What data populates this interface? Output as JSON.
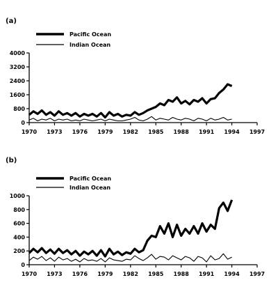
{
  "chart_data": [
    {
      "panel_label": "(a)",
      "type": "line",
      "ylim": [
        0,
        4000
      ],
      "y_ticks": [
        "4000",
        "3200",
        "2400",
        "1600",
        "800",
        "0"
      ],
      "y_tick_values": [
        4000,
        3200,
        2400,
        1600,
        800,
        0
      ],
      "xlim": [
        1970,
        1997
      ],
      "x_ticks": [
        "1970",
        "1973",
        "1976",
        "1979",
        "1982",
        "1985",
        "1988",
        "1991",
        "1994",
        "1997"
      ],
      "x_tick_values": [
        1970,
        1973,
        1976,
        1979,
        1982,
        1985,
        1988,
        1991,
        1994,
        1997
      ],
      "legend_placement": "top-left",
      "series": [
        {
          "name": "Pacific Ocean",
          "line_weight": "thick",
          "x": [
            1970,
            1970.5,
            1971,
            1971.5,
            1972,
            1972.5,
            1973,
            1973.5,
            1974,
            1974.5,
            1975,
            1975.5,
            1976,
            1976.5,
            1977,
            1977.5,
            1978,
            1978.5,
            1979,
            1979.5,
            1980,
            1980.5,
            1981,
            1981.5,
            1982,
            1982.5,
            1983,
            1983.5,
            1984,
            1984.5,
            1985,
            1985.5,
            1986,
            1986.5,
            1987,
            1987.5,
            1988,
            1988.5,
            1989,
            1989.5,
            1990,
            1990.5,
            1991,
            1991.5,
            1992,
            1992.5,
            1993,
            1993.5,
            1994
          ],
          "values": [
            450,
            650,
            500,
            700,
            450,
            600,
            400,
            650,
            450,
            550,
            400,
            550,
            350,
            500,
            400,
            500,
            350,
            550,
            300,
            600,
            400,
            500,
            350,
            450,
            400,
            600,
            450,
            550,
            700,
            800,
            900,
            1100,
            1000,
            1300,
            1200,
            1450,
            1100,
            1250,
            1050,
            1300,
            1200,
            1400,
            1100,
            1350,
            1400,
            1700,
            1900,
            2200,
            2100
          ]
        },
        {
          "name": "Indian Ocean",
          "line_weight": "thin",
          "x": [
            1970,
            1970.5,
            1971,
            1971.5,
            1972,
            1972.5,
            1973,
            1973.5,
            1974,
            1974.5,
            1975,
            1975.5,
            1976,
            1976.5,
            1977,
            1977.5,
            1978,
            1978.5,
            1979,
            1979.5,
            1980,
            1980.5,
            1981,
            1981.5,
            1982,
            1982.5,
            1983,
            1983.5,
            1984,
            1984.5,
            1985,
            1985.5,
            1986,
            1986.5,
            1987,
            1987.5,
            1988,
            1988.5,
            1989,
            1989.5,
            1990,
            1990.5,
            1991,
            1991.5,
            1992,
            1992.5,
            1993,
            1993.5,
            1994
          ],
          "values": [
            150,
            250,
            100,
            200,
            150,
            250,
            100,
            200,
            150,
            200,
            100,
            150,
            100,
            200,
            150,
            100,
            150,
            200,
            100,
            200,
            150,
            100,
            100,
            150,
            200,
            300,
            150,
            100,
            200,
            350,
            150,
            250,
            200,
            150,
            300,
            200,
            150,
            250,
            200,
            100,
            250,
            200,
            100,
            250,
            150,
            200,
            300,
            150,
            200
          ]
        }
      ]
    },
    {
      "panel_label": "(b)",
      "type": "line",
      "ylim": [
        0,
        1000
      ],
      "y_ticks": [
        "1000",
        "800",
        "600",
        "400",
        "200",
        "0"
      ],
      "y_tick_values": [
        1000,
        800,
        600,
        400,
        200,
        0
      ],
      "xlim": [
        1970,
        1997
      ],
      "x_ticks": [
        "1970",
        "1973",
        "1976",
        "1979",
        "1982",
        "1985",
        "1988",
        "1991",
        "1994",
        "1997"
      ],
      "x_tick_values": [
        1970,
        1973,
        1976,
        1979,
        1982,
        1985,
        1988,
        1991,
        1994,
        1997
      ],
      "legend_placement": "top-left",
      "series": [
        {
          "name": "Pacific Ocean",
          "line_weight": "thick",
          "x": [
            1970,
            1970.5,
            1971,
            1971.5,
            1972,
            1972.5,
            1973,
            1973.5,
            1974,
            1974.5,
            1975,
            1975.5,
            1976,
            1976.5,
            1977,
            1977.5,
            1978,
            1978.5,
            1979,
            1979.5,
            1980,
            1980.5,
            1981,
            1981.5,
            1982,
            1982.5,
            1983,
            1983.5,
            1984,
            1984.5,
            1985,
            1985.5,
            1986,
            1986.5,
            1987,
            1987.5,
            1988,
            1988.5,
            1989,
            1989.5,
            1990,
            1990.5,
            1991,
            1991.5,
            1992,
            1992.5,
            1993,
            1993.5,
            1994
          ],
          "values": [
            170,
            230,
            180,
            240,
            170,
            220,
            160,
            230,
            170,
            210,
            150,
            200,
            130,
            190,
            150,
            200,
            130,
            210,
            120,
            230,
            150,
            190,
            140,
            180,
            160,
            230,
            180,
            210,
            350,
            420,
            400,
            560,
            450,
            600,
            400,
            580,
            420,
            520,
            450,
            560,
            450,
            600,
            480,
            580,
            520,
            820,
            900,
            780,
            940
          ]
        },
        {
          "name": "Indian Ocean",
          "line_weight": "thin",
          "x": [
            1970,
            1970.5,
            1971,
            1971.5,
            1972,
            1972.5,
            1973,
            1973.5,
            1974,
            1974.5,
            1975,
            1975.5,
            1976,
            1976.5,
            1977,
            1977.5,
            1978,
            1978.5,
            1979,
            1979.5,
            1980,
            1980.5,
            1981,
            1981.5,
            1982,
            1982.5,
            1983,
            1983.5,
            1984,
            1984.5,
            1985,
            1985.5,
            1986,
            1986.5,
            1987,
            1987.5,
            1988,
            1988.5,
            1989,
            1989.5,
            1990,
            1990.5,
            1991,
            1991.5,
            1992,
            1992.5,
            1993,
            1993.5,
            1994
          ],
          "values": [
            60,
            110,
            80,
            120,
            60,
            100,
            50,
            110,
            70,
            90,
            50,
            80,
            40,
            90,
            60,
            70,
            50,
            90,
            40,
            100,
            70,
            60,
            50,
            80,
            70,
            130,
            90,
            60,
            100,
            150,
            80,
            120,
            110,
            70,
            130,
            100,
            70,
            120,
            100,
            50,
            120,
            100,
            40,
            130,
            70,
            90,
            160,
            80,
            110
          ]
        }
      ]
    }
  ]
}
